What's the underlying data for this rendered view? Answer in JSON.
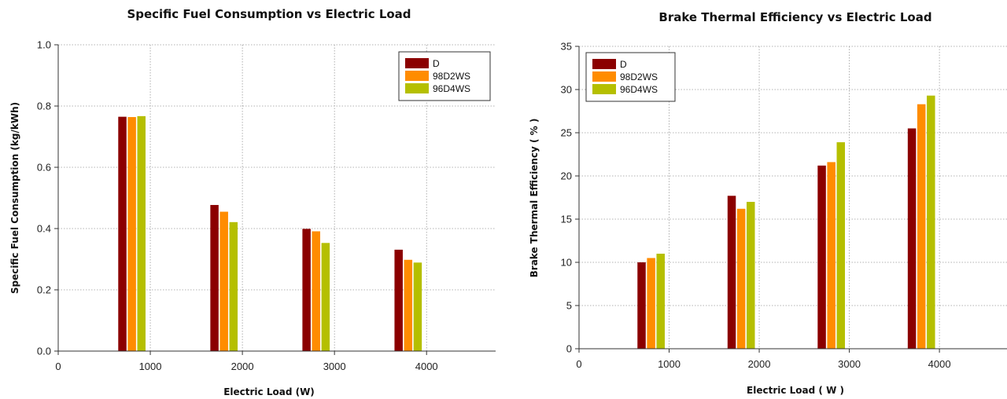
{
  "chart_data": [
    {
      "type": "bar",
      "title": "Specific Fuel Consumption vs Electric Load",
      "xlabel": "Electric Load (W)",
      "ylabel": "Specific Fuel Consumption (kg/kWh)",
      "x": [
        800,
        1800,
        2800,
        3800
      ],
      "xlim": [
        0,
        4750
      ],
      "xticks": [
        0,
        1000,
        2000,
        3000,
        4000
      ],
      "ylim": [
        0,
        1.0
      ],
      "yticks": [
        "0.0",
        "0.2",
        "0.4",
        "0.6",
        "0.8",
        "1.0"
      ],
      "grid": true,
      "legend_position": "top-right",
      "series": [
        {
          "name": "D",
          "color": "#8b0000",
          "values": [
            0.765,
            0.477,
            0.399,
            0.331
          ]
        },
        {
          "name": "98D2WS",
          "color": "#ff8c00",
          "values": [
            0.764,
            0.455,
            0.391,
            0.298
          ]
        },
        {
          "name": "96D4WS",
          "color": "#b5bf00",
          "values": [
            0.767,
            0.421,
            0.353,
            0.289
          ]
        }
      ]
    },
    {
      "type": "bar",
      "title": "Brake Thermal Efficiency vs Electric Load",
      "xlabel": "Electric Load ( W )",
      "ylabel": "Brake Thermal Efficiency ( % )",
      "x": [
        800,
        1800,
        2800,
        3800
      ],
      "xlim": [
        0,
        4750
      ],
      "xticks": [
        0,
        1000,
        2000,
        3000,
        4000
      ],
      "ylim": [
        0,
        35
      ],
      "yticks": [
        "0",
        "5",
        "10",
        "15",
        "20",
        "25",
        "30",
        "35"
      ],
      "grid": true,
      "legend_position": "top-left",
      "series": [
        {
          "name": "D",
          "color": "#8b0000",
          "values": [
            10.0,
            17.7,
            21.2,
            25.5
          ]
        },
        {
          "name": "98D2WS",
          "color": "#ff8c00",
          "values": [
            10.5,
            16.2,
            21.6,
            28.3
          ]
        },
        {
          "name": "96D4WS",
          "color": "#b5bf00",
          "values": [
            11.0,
            17.0,
            23.9,
            29.3
          ]
        }
      ]
    }
  ]
}
